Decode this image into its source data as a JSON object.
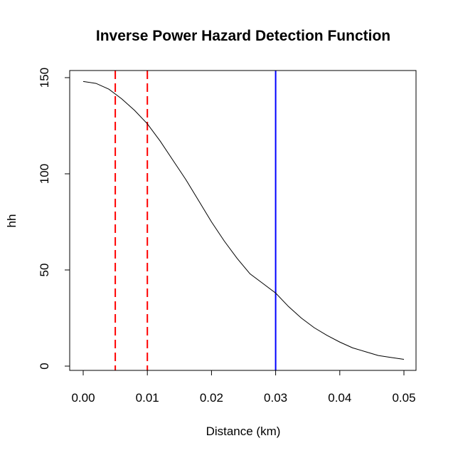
{
  "chart_data": {
    "type": "line",
    "title": "Inverse Power Hazard Detection Function",
    "xlabel": "Distance (km)",
    "ylabel": "hh",
    "xlim": [
      0,
      0.05
    ],
    "ylim": [
      0,
      150
    ],
    "x_ticks": [
      "0.00",
      "0.01",
      "0.02",
      "0.03",
      "0.04",
      "0.05"
    ],
    "y_ticks": [
      "0",
      "50",
      "100",
      "150"
    ],
    "grid": false,
    "series": [
      {
        "color": "#000000",
        "x": [
          0.0,
          0.002,
          0.004,
          0.006,
          0.008,
          0.01,
          0.012,
          0.014,
          0.016,
          0.018,
          0.02,
          0.022,
          0.024,
          0.026,
          0.028,
          0.03,
          0.032,
          0.034,
          0.036,
          0.038,
          0.04,
          0.042,
          0.044,
          0.046,
          0.048,
          0.05
        ],
        "y": [
          148,
          147,
          144,
          139,
          133,
          126,
          117,
          107,
          97,
          86,
          75,
          65,
          56,
          48,
          43,
          38,
          31,
          25,
          20,
          16,
          12.5,
          9.5,
          7.5,
          5.5,
          4.5,
          3.5
        ]
      }
    ],
    "vlines": [
      {
        "x": 0.005,
        "color": "#ff0000",
        "style": "dashed"
      },
      {
        "x": 0.01,
        "color": "#ff0000",
        "style": "dashed"
      },
      {
        "x": 0.03,
        "color": "#0000ff",
        "style": "solid"
      }
    ]
  }
}
